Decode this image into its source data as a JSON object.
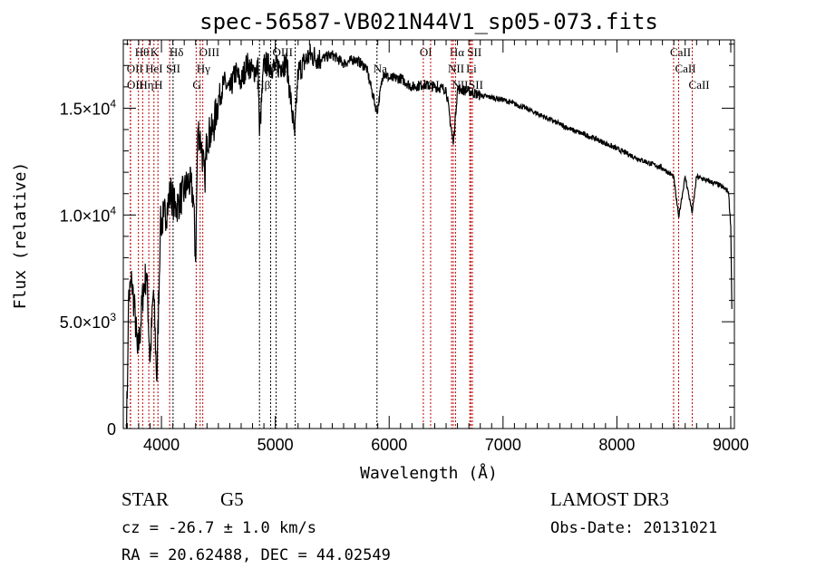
{
  "chart_data": {
    "type": "line",
    "title": "spec-56587-VB021N44V1_sp05-073.fits",
    "xlabel": "Wavelength (Å)",
    "ylabel": "Flux (relative)",
    "xlim": [
      3665,
      9032
    ],
    "ylim": [
      0,
      18200
    ],
    "xticks": [
      4000,
      5000,
      6000,
      7000,
      8000,
      9000
    ],
    "xtick_labels": [
      "4000",
      "5000",
      "6000",
      "7000",
      "8000",
      "9000"
    ],
    "yticks": [
      0,
      5000,
      10000,
      15000
    ],
    "ytick_labels": [
      {
        "mant": "0",
        "exp": ""
      },
      {
        "mant": "5.0×10",
        "exp": "3"
      },
      {
        "mant": "1.0×10",
        "exp": "4"
      },
      {
        "mant": "1.5×10",
        "exp": "4"
      }
    ],
    "grid": false,
    "series": [
      {
        "name": "spectrum",
        "x": [
          3690,
          3700,
          3710,
          3740,
          3770,
          3790,
          3810,
          3840,
          3870,
          3900,
          3930,
          3960,
          3990,
          4020,
          4050,
          4080,
          4120,
          4160,
          4200,
          4240,
          4280,
          4300,
          4320,
          4350,
          4380,
          4400,
          4450,
          4500,
          4550,
          4600,
          4650,
          4700,
          4750,
          4800,
          4850,
          4861,
          4900,
          5000,
          5100,
          5170,
          5200,
          5300,
          5400,
          5500,
          5600,
          5700,
          5800,
          5893,
          5950,
          6000,
          6100,
          6200,
          6300,
          6400,
          6500,
          6563,
          6600,
          6700,
          6800,
          7000,
          7200,
          7400,
          7600,
          7800,
          8000,
          8200,
          8400,
          8498,
          8542,
          8600,
          8662,
          8700,
          8800,
          8900,
          8980,
          9000,
          9010
        ],
        "y": [
          200,
          1400,
          6000,
          6900,
          5200,
          3500,
          4400,
          6500,
          7300,
          3100,
          6500,
          2200,
          9500,
          9900,
          10300,
          11100,
          10300,
          10700,
          11100,
          11600,
          10900,
          7800,
          14100,
          13300,
          11600,
          13700,
          13900,
          15400,
          16200,
          15800,
          16700,
          16200,
          17100,
          16700,
          16900,
          13700,
          17100,
          16900,
          17100,
          13700,
          16700,
          17500,
          17300,
          17500,
          17100,
          17300,
          16900,
          14800,
          16700,
          16400,
          16400,
          16000,
          16100,
          16000,
          15900,
          13300,
          15900,
          15800,
          15600,
          15400,
          15000,
          14500,
          14000,
          13600,
          13100,
          12600,
          12200,
          11800,
          9900,
          11800,
          10100,
          11800,
          11600,
          11400,
          11100,
          9500,
          5600
        ]
      }
    ],
    "line_markers": [
      {
        "label": "Hθ",
        "wave": 3798,
        "row": 0,
        "color": "#c00000"
      },
      {
        "label": "K",
        "wave": 3934,
        "row": 0,
        "color": "#c00000"
      },
      {
        "label": "Hδ",
        "wave": 4102,
        "row": 0,
        "color": "#000000"
      },
      {
        "label": "OIII",
        "wave": 4363,
        "row": 0,
        "color": "#c00000"
      },
      {
        "label": "OIII",
        "wave": 5007,
        "row": 0,
        "color": "#000000"
      },
      {
        "label": "OI",
        "wave": 6300,
        "row": 0,
        "color": "#c00000"
      },
      {
        "label": "Hα",
        "wave": 6563,
        "row": 0,
        "color": "#c00000"
      },
      {
        "label": "SII",
        "wave": 6717,
        "row": 0,
        "color": "#c00000"
      },
      {
        "label": "CaII",
        "wave": 8498,
        "row": 0,
        "color": "#c00000"
      },
      {
        "label": "OII",
        "wave": 3727,
        "row": 1,
        "color": "#c00000"
      },
      {
        "label": "HeI",
        "wave": 3889,
        "row": 1,
        "color": "#c00000"
      },
      {
        "label": "SII",
        "wave": 4072,
        "row": 1,
        "color": "#c00000"
      },
      {
        "label": "Hγ",
        "wave": 4340,
        "row": 1,
        "color": "#c00000"
      },
      {
        "label": "OIII",
        "wave": 4959,
        "row": 1,
        "color": "#000000"
      },
      {
        "label": "Na",
        "wave": 5893,
        "row": 1,
        "color": "#000000"
      },
      {
        "label": "NII",
        "wave": 6548,
        "row": 1,
        "color": "#c00000"
      },
      {
        "label": "Li",
        "wave": 6708,
        "row": 1,
        "color": "#c00000"
      },
      {
        "label": "CaII",
        "wave": 8542,
        "row": 1,
        "color": "#c00000"
      },
      {
        "label": "OII",
        "wave": 3729,
        "row": 2,
        "color": "#c00000"
      },
      {
        "label": "Hη",
        "wave": 3835,
        "row": 2,
        "color": "#c00000"
      },
      {
        "label": "H",
        "wave": 3969,
        "row": 2,
        "color": "#c00000"
      },
      {
        "label": "G",
        "wave": 4305,
        "row": 2,
        "color": "#c00000"
      },
      {
        "label": "Hβ",
        "wave": 4861,
        "row": 2,
        "color": "#000000"
      },
      {
        "label": "OI",
        "wave": 6364,
        "row": 2,
        "color": "#c00000"
      },
      {
        "label": "NII",
        "wave": 6583,
        "row": 2,
        "color": "#c00000"
      },
      {
        "label": "SII",
        "wave": 6731,
        "row": 2,
        "color": "#c00000"
      },
      {
        "label": "CaII",
        "wave": 8662,
        "row": 2,
        "color": "#c00000"
      },
      {
        "label": "",
        "wave": 5175,
        "row": 2,
        "color": "#000000"
      }
    ]
  },
  "info": {
    "class": "STAR",
    "subclass": "G5",
    "cz": "cz = -26.7 ± 1.0 km/s",
    "coords": "RA =  20.62488, DEC =  44.02549",
    "survey": "LAMOST DR3",
    "obs_date": "Obs-Date: 20131021"
  }
}
